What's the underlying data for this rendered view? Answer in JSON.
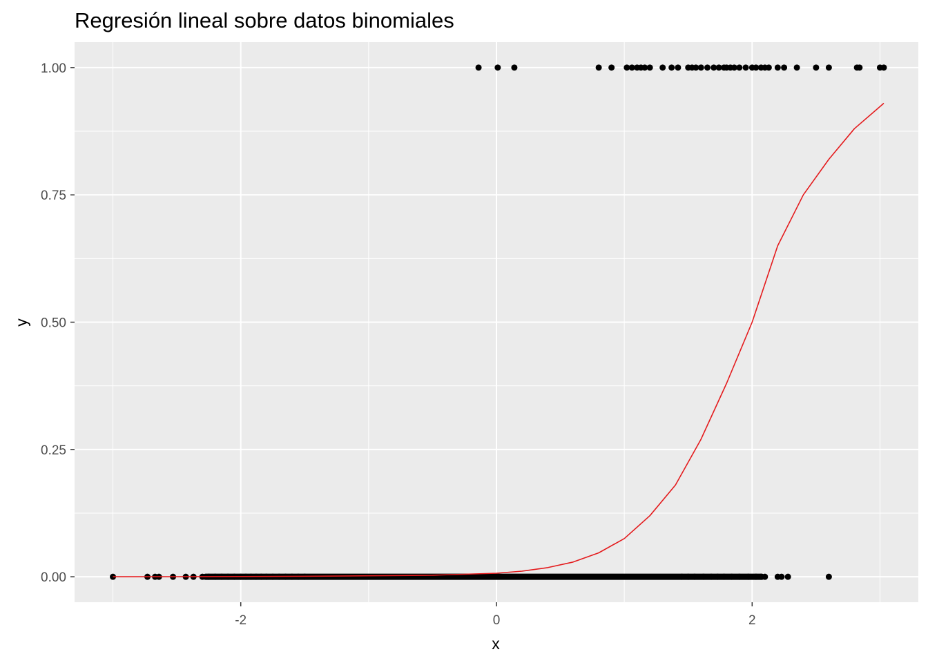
{
  "chart_data": {
    "type": "scatter",
    "title": "Regresión lineal sobre datos binomiales",
    "xlabel": "x",
    "ylabel": "y",
    "xlim": [
      -3.3,
      3.3
    ],
    "ylim": [
      -0.05,
      1.05
    ],
    "x_ticks": [
      -2,
      0,
      2
    ],
    "x_tick_labels": [
      "-2",
      "0",
      "2"
    ],
    "y_ticks": [
      0,
      0.25,
      0.5,
      0.75,
      1
    ],
    "y_tick_labels": [
      "0.00",
      "0.25",
      "0.50",
      "0.75",
      "1.00"
    ],
    "grid": true,
    "legend": "none",
    "series": [
      {
        "kind": "points",
        "y": 1,
        "x": [
          -0.14,
          0.01,
          0.14,
          0.8,
          0.9,
          1.02,
          1.06,
          1.1,
          1.13,
          1.16,
          1.2,
          1.3,
          1.37,
          1.42,
          1.5,
          1.53,
          1.56,
          1.6,
          1.65,
          1.7,
          1.74,
          1.78,
          1.8,
          1.83,
          1.86,
          1.9,
          1.95,
          2.0,
          2.03,
          2.07,
          2.1,
          2.13,
          2.2,
          2.25,
          2.35,
          2.5,
          2.6,
          2.82,
          2.84,
          3.0,
          3.03
        ]
      },
      {
        "kind": "points",
        "y": 0,
        "x_dense_range": [
          -2.3,
          2.1
        ],
        "x": [
          -3.0,
          -2.73,
          -2.67,
          -2.64,
          -2.53,
          -2.43,
          -2.37,
          -2.3,
          -2.25,
          -2.2,
          -2.15,
          -2.1,
          -2.05,
          -2.0,
          -1.96,
          -1.92,
          -1.88,
          -1.84,
          -1.8,
          -1.75,
          -1.7,
          -1.65,
          -1.6,
          -1.55,
          -1.5,
          1.45,
          1.5,
          1.55,
          1.62,
          1.68,
          1.73,
          1.78,
          1.84,
          1.9,
          1.97,
          2.03,
          2.07,
          2.1,
          2.2,
          2.23,
          2.28,
          2.6
        ]
      },
      {
        "kind": "line",
        "color": "#E41A1C",
        "x": [
          -3.0,
          -2.5,
          -2.0,
          -1.5,
          -1.0,
          -0.5,
          0.0,
          0.2,
          0.4,
          0.6,
          0.8,
          1.0,
          1.2,
          1.4,
          1.6,
          1.8,
          2.0,
          2.2,
          2.4,
          2.6,
          2.8,
          3.03
        ],
        "y": [
          0.0,
          0.0,
          0.0005,
          0.001,
          0.002,
          0.003,
          0.007,
          0.011,
          0.018,
          0.029,
          0.047,
          0.075,
          0.12,
          0.18,
          0.27,
          0.38,
          0.5,
          0.65,
          0.75,
          0.82,
          0.88,
          0.93
        ]
      }
    ]
  }
}
